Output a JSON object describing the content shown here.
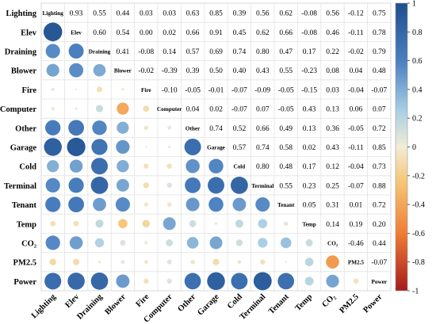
{
  "chart_data": {
    "type": "heatmap",
    "subtype": "correlation-matrix",
    "layout": "lower-triangle circles, upper-triangle numeric values, variable names on diagonal",
    "variables": [
      "Lighting",
      "Elev",
      "Draining",
      "Blower",
      "Fire",
      "Computer",
      "Other",
      "Garage",
      "Cold",
      "Terminal",
      "Tenant",
      "Temp",
      "CO2",
      "PM2.5",
      "Power"
    ],
    "variable_display": [
      "Lighting",
      "Elev",
      "Draining",
      "Blower",
      "Fire",
      "Computer",
      "Other",
      "Garage",
      "Cold",
      "Terminal",
      "Tenant",
      "Temp",
      "CO₂",
      "PM2.5",
      "Power"
    ],
    "upper_values": [
      [
        null,
        0.93,
        0.55,
        0.44,
        0.03,
        0.03,
        0.63,
        0.85,
        0.39,
        0.56,
        0.62,
        -0.08,
        0.56,
        -0.12,
        0.75
      ],
      [
        null,
        null,
        0.6,
        0.54,
        0.0,
        0.02,
        0.66,
        0.91,
        0.45,
        0.62,
        0.66,
        -0.08,
        0.46,
        -0.11,
        0.78
      ],
      [
        null,
        null,
        null,
        0.41,
        -0.08,
        0.14,
        0.57,
        0.69,
        0.74,
        0.8,
        0.47,
        0.17,
        0.22,
        -0.02,
        0.79
      ],
      [
        null,
        null,
        null,
        null,
        -0.02,
        -0.39,
        0.39,
        0.5,
        0.4,
        0.43,
        0.55,
        -0.23,
        0.08,
        0.04,
        0.48
      ],
      [
        null,
        null,
        null,
        null,
        null,
        -0.1,
        -0.05,
        -0.01,
        -0.07,
        -0.09,
        -0.05,
        -0.15,
        0.03,
        -0.04,
        -0.07
      ],
      [
        null,
        null,
        null,
        null,
        null,
        null,
        0.04,
        0.02,
        -0.07,
        0.07,
        -0.05,
        0.43,
        0.13,
        0.06,
        0.07
      ],
      [
        null,
        null,
        null,
        null,
        null,
        null,
        null,
        0.74,
        0.52,
        0.66,
        0.49,
        0.13,
        0.36,
        -0.05,
        0.72
      ],
      [
        null,
        null,
        null,
        null,
        null,
        null,
        null,
        null,
        0.57,
        0.74,
        0.58,
        0.02,
        0.43,
        -0.11,
        0.85
      ],
      [
        null,
        null,
        null,
        null,
        null,
        null,
        null,
        null,
        null,
        0.8,
        0.48,
        0.17,
        0.12,
        -0.04,
        0.73
      ],
      [
        null,
        null,
        null,
        null,
        null,
        null,
        null,
        null,
        null,
        null,
        0.55,
        0.23,
        0.25,
        -0.07,
        0.88
      ],
      [
        null,
        null,
        null,
        null,
        null,
        null,
        null,
        null,
        null,
        null,
        null,
        0.05,
        0.31,
        0.01,
        0.72
      ],
      [
        null,
        null,
        null,
        null,
        null,
        null,
        null,
        null,
        null,
        null,
        null,
        null,
        0.14,
        0.19,
        0.2
      ],
      [
        null,
        null,
        null,
        null,
        null,
        null,
        null,
        null,
        null,
        null,
        null,
        null,
        null,
        -0.46,
        0.44
      ],
      [
        null,
        null,
        null,
        null,
        null,
        null,
        null,
        null,
        null,
        null,
        null,
        null,
        null,
        null,
        -0.07
      ],
      [
        null,
        null,
        null,
        null,
        null,
        null,
        null,
        null,
        null,
        null,
        null,
        null,
        null,
        null,
        null
      ]
    ],
    "colorbar": {
      "ticks": [
        "1",
        "0.8",
        "0.6",
        "0.4",
        "0.2",
        "0",
        "-0.2",
        "-0.4",
        "-0.6",
        "-0.8",
        "-1"
      ],
      "tick_values": [
        1,
        0.8,
        0.6,
        0.4,
        0.2,
        0,
        -0.2,
        -0.4,
        -0.6,
        -0.8,
        -1
      ],
      "range": [
        -1,
        1
      ],
      "placement": "right"
    },
    "colors": {
      "strong_positive": "#1f4e8c",
      "positive": "#4a7fc0",
      "weak_positive": "#a9cfe4",
      "neutral": "#f2ecd5",
      "weak_negative": "#f6c574",
      "negative": "#ef7d35",
      "strong_negative": "#a51c1c"
    },
    "grid": true
  }
}
